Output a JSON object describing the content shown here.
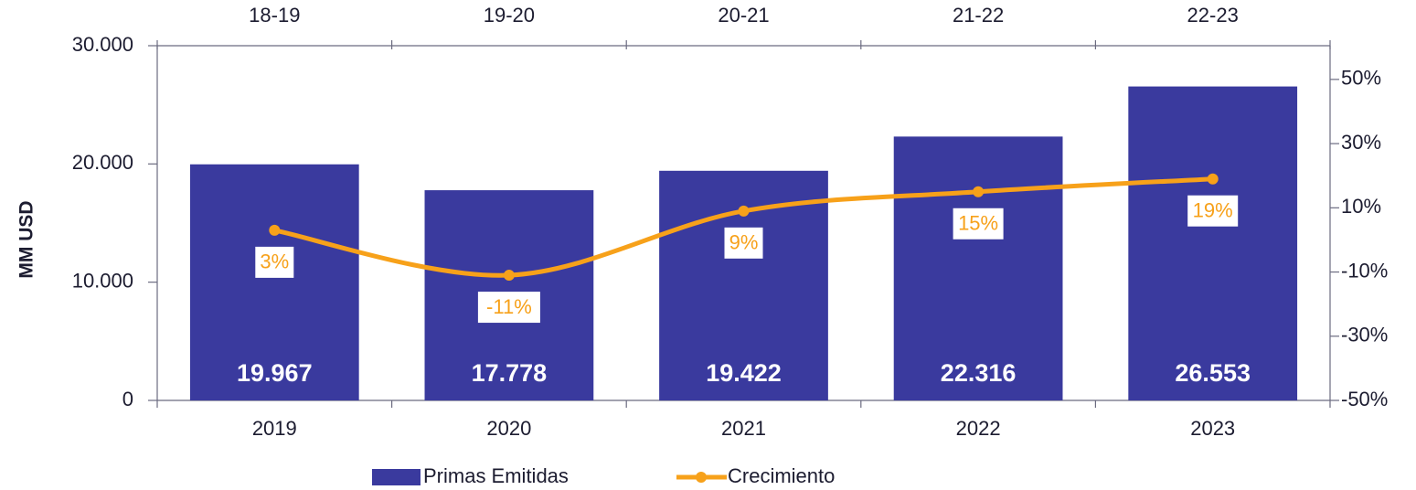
{
  "chart_data": {
    "type": "bar_line",
    "y_axis_label": "MM USD",
    "categories": [
      "2019",
      "2020",
      "2021",
      "2022",
      "2023"
    ],
    "top_categories": [
      "18-19",
      "19-20",
      "20-21",
      "21-22",
      "22-23"
    ],
    "series": [
      {
        "name": "Primas Emitidas",
        "type": "bar",
        "color": "#3a3a9e",
        "values": [
          19967,
          17778,
          19422,
          22316,
          26553
        ],
        "value_labels": [
          "19.967",
          "17.778",
          "19.422",
          "22.316",
          "26.553"
        ]
      },
      {
        "name": "Crecimiento",
        "type": "line",
        "axis": "y2",
        "color": "#f7a11a",
        "values": [
          3,
          -11,
          9,
          15,
          19
        ],
        "value_labels": [
          "3%",
          "-11%",
          "9%",
          "15%",
          "19%"
        ]
      }
    ],
    "ylim": [
      0,
      30000
    ],
    "yticks": [
      0,
      {
        "value": 10000,
        "label": "10.000"
      },
      {
        "value": 20000,
        "label": "20.000"
      },
      {
        "value": 30000,
        "label": "30.000"
      }
    ],
    "y2lim": [
      -50,
      60.5
    ],
    "y2ticks": [
      {
        "value": -50,
        "label": "-50%"
      },
      {
        "value": -30,
        "label": "-30%"
      },
      {
        "value": -10,
        "label": "-10%"
      },
      {
        "value": 10,
        "label": "10%"
      },
      {
        "value": 30,
        "label": "30%"
      },
      {
        "value": 50,
        "label": "50%"
      }
    ],
    "legend": "bottom"
  }
}
